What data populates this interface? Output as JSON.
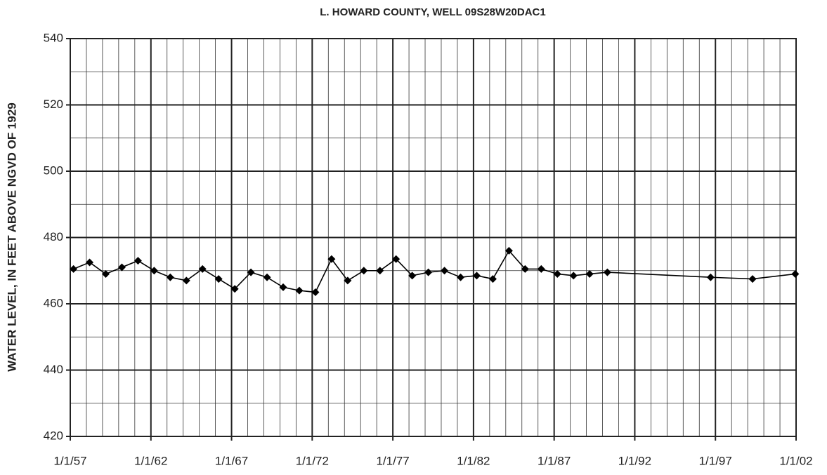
{
  "chart_data": {
    "type": "line",
    "title": "L. HOWARD COUNTY, WELL 09S28W20DAC1",
    "y_label": "WATER LEVEL, IN  FEET ABOVE NGVD OF 1929",
    "series": [
      {
        "color": "#000000",
        "x": [
          1957.2,
          1958.2,
          1959.2,
          1960.2,
          1961.2,
          1962.2,
          1963.2,
          1964.2,
          1965.2,
          1966.2,
          1967.2,
          1968.2,
          1969.2,
          1970.2,
          1971.2,
          1972.2,
          1973.2,
          1974.2,
          1975.2,
          1976.2,
          1977.2,
          1978.2,
          1979.2,
          1980.2,
          1981.2,
          1982.2,
          1983.2,
          1984.2,
          1985.2,
          1986.2,
          1987.2,
          1988.2,
          1989.2,
          1990.3,
          1996.7,
          1999.3,
          2001.95
        ],
        "values": [
          470.5,
          472.5,
          469,
          471,
          473,
          470,
          468,
          467,
          470.5,
          467.5,
          464.5,
          469.5,
          468,
          465,
          464,
          463.5,
          473.5,
          467,
          470,
          470,
          473.5,
          468.5,
          469.5,
          470,
          468,
          468.5,
          467.5,
          476,
          470.5,
          470.5,
          469,
          468.5,
          469,
          469.5,
          468,
          467.5,
          469
        ]
      }
    ],
    "xlim": [
      1957,
      2002
    ],
    "ylim": [
      420,
      540
    ],
    "xticks": [
      {
        "value": 1957,
        "label": "1/1/57"
      },
      {
        "value": 1962,
        "label": "1/1/62"
      },
      {
        "value": 1967,
        "label": "1/1/67"
      },
      {
        "value": 1972,
        "label": "1/1/72"
      },
      {
        "value": 1977,
        "label": "1/1/77"
      },
      {
        "value": 1982,
        "label": "1/1/82"
      },
      {
        "value": 1987,
        "label": "1/1/87"
      },
      {
        "value": 1992,
        "label": "1/1/92"
      },
      {
        "value": 1997,
        "label": "1/1/97"
      },
      {
        "value": 2002,
        "label": "1/1/02"
      }
    ],
    "yticks": [
      420,
      440,
      460,
      480,
      500,
      520,
      540
    ],
    "xgrid": [
      1958,
      1959,
      1960,
      1961,
      1963,
      1964,
      1965,
      1966,
      1968,
      1969,
      1970,
      1971,
      1973,
      1974,
      1975,
      1976,
      1978,
      1979,
      1980,
      1981,
      1983,
      1984,
      1985,
      1986,
      1988,
      1989,
      1990,
      1991,
      1993,
      1994,
      1995,
      1996,
      1998,
      1999,
      2000,
      2001
    ],
    "ygrid": [
      430,
      450,
      470,
      490,
      510,
      530
    ],
    "grid": true,
    "marker": "diamond"
  }
}
